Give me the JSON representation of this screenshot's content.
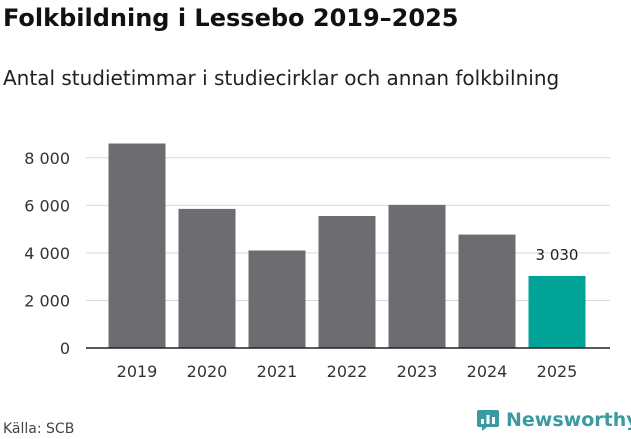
{
  "colors": {
    "bar": "#6d6c70",
    "highlight": "#00a398",
    "grid": "#d9d9d9",
    "axis": "#222222",
    "brand": "#3a9aa1"
  },
  "chart_data": {
    "type": "bar",
    "title": "Folkbildning i Lessebo 2019–2025",
    "subtitle": "Antal studietimmar i studiecirklar och annan folkbilning",
    "categories": [
      "2019",
      "2020",
      "2021",
      "2022",
      "2023",
      "2024",
      "2025"
    ],
    "values": [
      8600,
      5850,
      4100,
      5550,
      6020,
      4770,
      3030
    ],
    "highlight_index": 6,
    "data_labels": [
      {
        "index": 6,
        "text": "3 030"
      }
    ],
    "ylim": [
      0,
      9000
    ],
    "yticks": [
      0,
      2000,
      4000,
      6000,
      8000
    ],
    "ytick_labels": [
      "0",
      "2 000",
      "4 000",
      "6 000",
      "8 000"
    ],
    "xlabel": "",
    "ylabel": "",
    "grid": true
  },
  "footer": {
    "source": "Källa: SCB",
    "brand": "Newsworthy",
    "brand_icon": "newsworthy-logo-icon"
  }
}
